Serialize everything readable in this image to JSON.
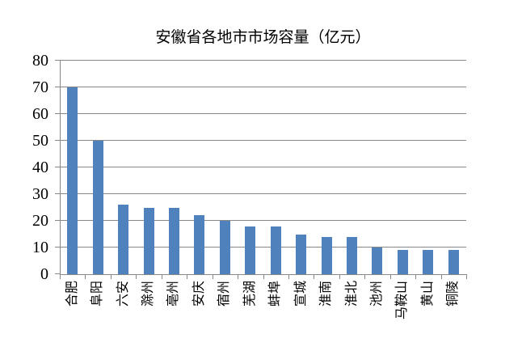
{
  "chart_data": {
    "type": "bar",
    "title": "安徽省各地市市场容量（亿元）",
    "categories": [
      "合肥",
      "阜阳",
      "六安",
      "滁州",
      "亳州",
      "安庆",
      "宿州",
      "芜湖",
      "蚌埠",
      "宣城",
      "淮南",
      "淮北",
      "池州",
      "马鞍山",
      "黄山",
      "铜陵"
    ],
    "values": [
      70,
      50,
      26,
      25,
      25,
      22,
      20,
      18,
      18,
      15,
      14,
      14,
      10,
      9,
      9,
      9
    ],
    "xlabel": "",
    "ylabel": "",
    "ylim": [
      0,
      80
    ],
    "yticks": [
      0,
      10,
      20,
      30,
      40,
      50,
      60,
      70,
      80
    ],
    "grid": true,
    "legend": "none",
    "bar_color": "#4F81BD",
    "grid_color": "#878787",
    "axis_color": "#878787",
    "text_color": "#000000",
    "background": "#FFFFFF"
  }
}
